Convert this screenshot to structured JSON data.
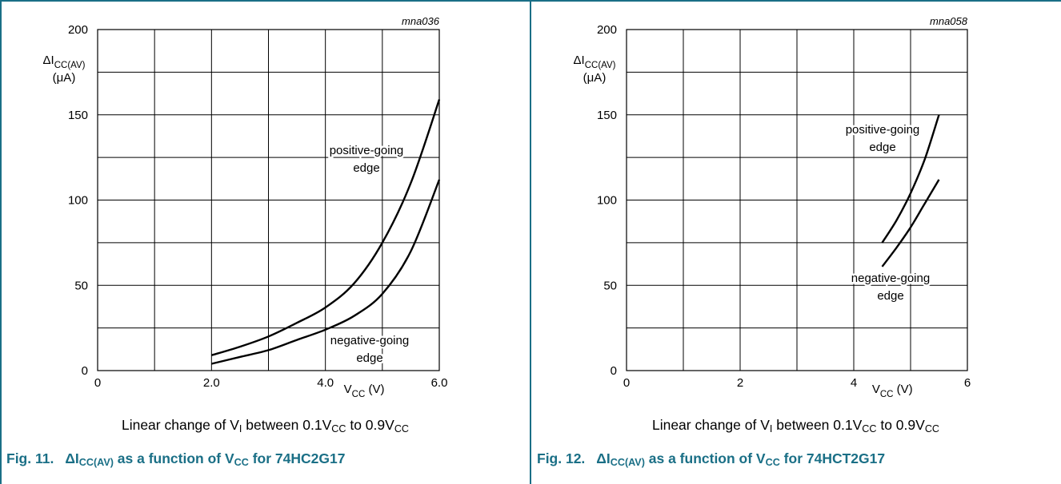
{
  "figures": [
    {
      "code": "mna036",
      "note": {
        "pre": "Linear change of V",
        "sub1": "I",
        "mid": " between 0.1V",
        "sub2": "CC",
        "mid2": " to 0.9V",
        "sub3": "CC"
      },
      "caption": {
        "fig": "Fig. 11.",
        "pre": "ΔI",
        "sub1": "CC(AV)",
        "mid": " as a function of V",
        "sub2": "CC",
        "post": " for 74HC2G17"
      }
    },
    {
      "code": "mna058",
      "note": {
        "pre": "Linear change of V",
        "sub1": "I",
        "mid": " between 0.1V",
        "sub2": "CC",
        "mid2": " to 0.9V",
        "sub3": "CC"
      },
      "caption": {
        "fig": "Fig. 12.",
        "pre": "ΔI",
        "sub1": "CC(AV)",
        "mid": " as a function of V",
        "sub2": "CC",
        "post": " for 74HCT2G17"
      }
    }
  ],
  "chart_data": [
    {
      "type": "line",
      "xlabel": {
        "main": "V",
        "sub": "CC",
        "unit": " (V)"
      },
      "ylabel": {
        "main": "ΔI",
        "sub": "CC(AV)",
        "unit": "(μA)"
      },
      "xlim": [
        0,
        6.0
      ],
      "ylim": [
        0,
        200
      ],
      "xticks": [
        0,
        2.0,
        4.0,
        6.0
      ],
      "xtick_labels": [
        "0",
        "2.0",
        "4.0",
        "6.0"
      ],
      "yticks": [
        0,
        50,
        100,
        150,
        200
      ],
      "ytick_labels": [
        "0",
        "50",
        "100",
        "150",
        "200"
      ],
      "grid": true,
      "series": [
        {
          "name": "positive-going edge",
          "label_lines": [
            "positive-going",
            "edge"
          ],
          "x": [
            2.0,
            2.5,
            3.0,
            3.5,
            4.0,
            4.5,
            5.0,
            5.5,
            6.0
          ],
          "y": [
            9,
            14,
            20,
            28,
            37,
            51,
            75,
            110,
            159
          ]
        },
        {
          "name": "negative-going edge",
          "label_lines": [
            "negative-going",
            "edge"
          ],
          "x": [
            2.0,
            2.5,
            3.0,
            3.5,
            4.0,
            4.5,
            5.0,
            5.5,
            6.0
          ],
          "y": [
            4,
            8,
            12,
            18,
            24,
            32,
            45,
            70,
            112
          ]
        }
      ]
    },
    {
      "type": "line",
      "xlabel": {
        "main": "V",
        "sub": "CC",
        "unit": " (V)"
      },
      "ylabel": {
        "main": "ΔI",
        "sub": "CC(AV)",
        "unit": "(μA)"
      },
      "xlim": [
        0,
        6
      ],
      "ylim": [
        0,
        200
      ],
      "xticks": [
        0,
        2,
        4,
        6
      ],
      "xtick_labels": [
        "0",
        "2",
        "4",
        "6"
      ],
      "yticks": [
        0,
        50,
        100,
        150,
        200
      ],
      "ytick_labels": [
        "0",
        "50",
        "100",
        "150",
        "200"
      ],
      "grid": true,
      "series": [
        {
          "name": "positive-going edge",
          "label_lines": [
            "positive-going",
            "edge"
          ],
          "x": [
            4.5,
            4.75,
            5.0,
            5.25,
            5.5
          ],
          "y": [
            75,
            88,
            104,
            124,
            150
          ]
        },
        {
          "name": "negative-going edge",
          "label_lines": [
            "negative-going",
            "edge"
          ],
          "x": [
            4.5,
            4.75,
            5.0,
            5.25,
            5.5
          ],
          "y": [
            61,
            72,
            84,
            98,
            112
          ]
        }
      ]
    }
  ]
}
